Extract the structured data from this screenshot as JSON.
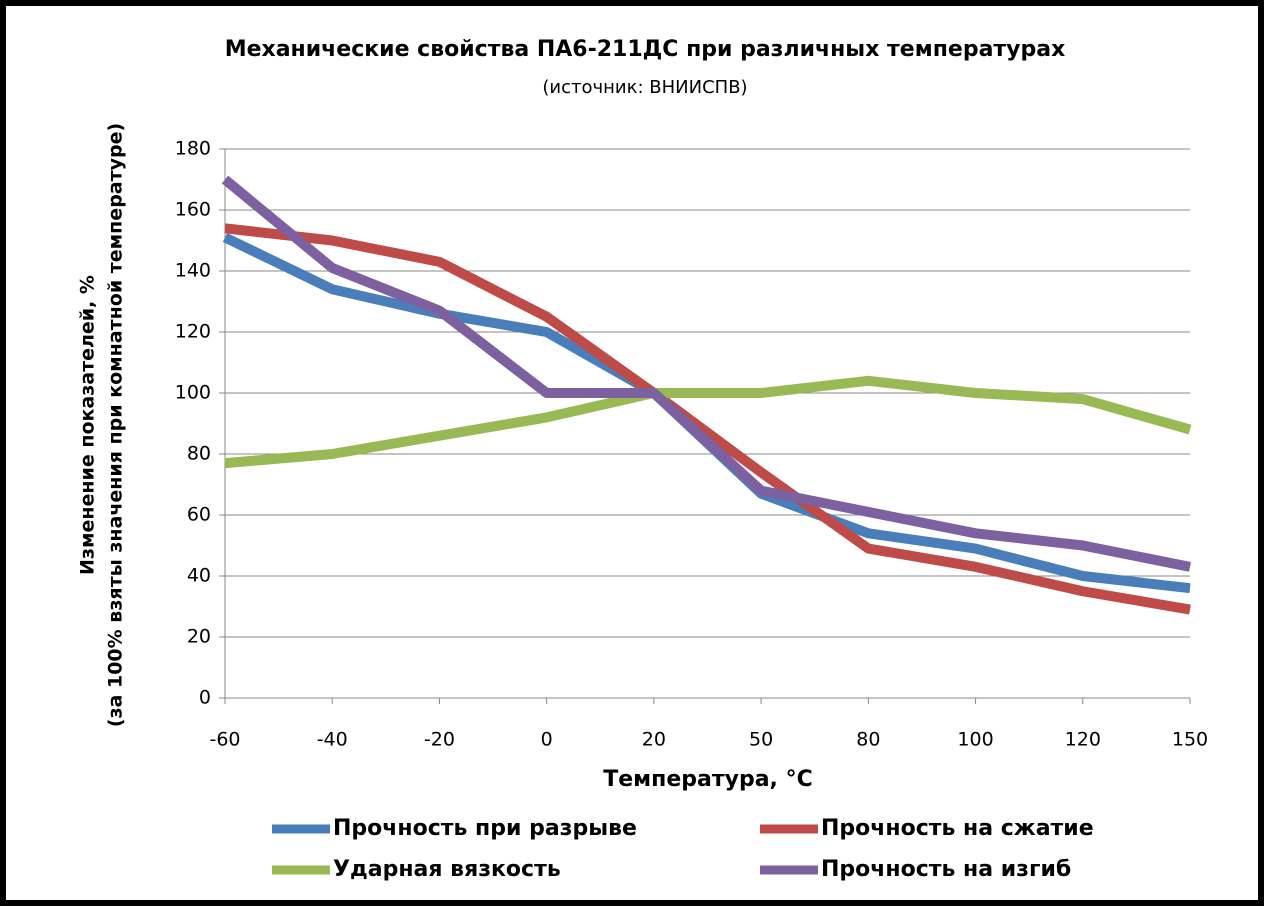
{
  "chart_data": {
    "type": "line",
    "title": "Механические свойства ПА6-211ДС при различных температурах",
    "subtitle": "(источник: ВНИИСПВ)",
    "y_label": [
      "Изменение показателей, %",
      "(за 100% взяты значения при комнатной температуре)"
    ],
    "x_label": "Температура, °C",
    "categories": [
      "-60",
      "-40",
      "-20",
      "0",
      "20",
      "50",
      "80",
      "100",
      "120",
      "150"
    ],
    "series": [
      {
        "name": "Прочность при разрыве",
        "color": "#4a7ebb",
        "values": [
          151,
          134,
          126,
          120,
          100,
          67,
          54,
          49,
          40,
          36
        ]
      },
      {
        "name": "Прочность на сжатие",
        "color": "#be4b48",
        "values": [
          154,
          150,
          143,
          125,
          100,
          74,
          49,
          43,
          35,
          29
        ]
      },
      {
        "name": "Ударная вязкость",
        "color": "#98b954",
        "values": [
          77,
          80,
          86,
          92,
          100,
          100,
          104,
          100,
          98,
          88
        ]
      },
      {
        "name": "Прочность на изгиб",
        "color": "#7d60a0",
        "values": [
          170,
          141,
          127,
          100,
          100,
          68,
          61,
          54,
          50,
          43
        ]
      }
    ],
    "ylim": [
      0,
      180
    ],
    "yticks": [
      0,
      20,
      40,
      60,
      80,
      100,
      120,
      140,
      160,
      180
    ],
    "grid": true,
    "legend": "bottom"
  }
}
